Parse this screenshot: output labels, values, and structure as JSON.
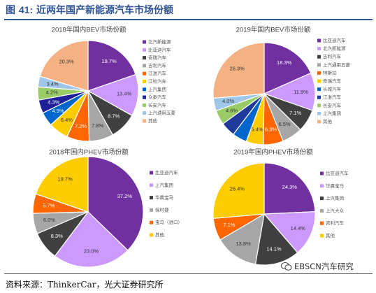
{
  "figure": {
    "title_prefix": "图",
    "title_number": "41:",
    "title_text": "近两年国产新能源汽车市场份额",
    "source": "资料来源：ThinkerCar，光大证券研究所",
    "watermark": "EBSCN汽车研究"
  },
  "colors": {
    "title_blue": "#2f5496"
  },
  "chart_data": [
    {
      "type": "pie",
      "title": "2018年国内BEV市场份额",
      "categories": [
        "北汽新能源",
        "比亚迪汽车",
        "奇瑞汽车",
        "吉利汽车",
        "江淮汽车",
        "江铃汽车",
        "上汽集团",
        "众泰汽车",
        "长安汽车",
        "上汽通用五菱",
        "其他"
      ],
      "values": [
        19.7,
        13.4,
        8.7,
        7.8,
        7.2,
        6.4,
        4.5,
        4.3,
        4.2,
        3.4,
        20.3
      ],
      "labels": [
        "19.7%",
        "13.4%",
        "8.7%",
        "7.8%",
        "7.2%",
        "6.4%",
        "4.5%",
        "4.3%",
        "4.2%",
        "3.4%",
        "20.3%"
      ],
      "colors": [
        "#7030a0",
        "#cc99ff",
        "#404040",
        "#a6a6a6",
        "#ff6600",
        "#ffcc00",
        "#0066cc",
        "#1f1f99",
        "#99cc66",
        "#9ec6e8",
        "#f4b183"
      ],
      "legend_position": "right"
    },
    {
      "type": "pie",
      "title": "2019年国内BEV市场份额",
      "categories": [
        "比亚迪汽车",
        "北汽新能源",
        "吉利汽车",
        "上汽通用五菱",
        "特斯拉",
        "奇瑞汽车",
        "长城汽车",
        "江淮汽车",
        "长安汽车",
        "上汽集团",
        "其他"
      ],
      "values": [
        18.3,
        11.9,
        7.1,
        6.5,
        6.3,
        5.4,
        4.6,
        4.6,
        4.6,
        4.0,
        26.3
      ],
      "labels": [
        "18.3%",
        "11.9%",
        "7.1%",
        "6.5%",
        "6.3%",
        "5.4%",
        "",
        "",
        "4.6%",
        "4.0%",
        "26.3%"
      ],
      "colors": [
        "#7030a0",
        "#cc99ff",
        "#404040",
        "#a6a6a6",
        "#ff6600",
        "#ffcc00",
        "#0066cc",
        "#1f3a99",
        "#99cc66",
        "#9ec6e8",
        "#f4b183"
      ],
      "legend_position": "right"
    },
    {
      "type": "pie",
      "title": "2018年国内PHEV市场份额",
      "categories": [
        "比亚迪汽车",
        "上汽集团",
        "华晨宝马",
        "保时捷",
        "宝马（进口）",
        "其他"
      ],
      "values": [
        37.2,
        23.0,
        8.3,
        6.0,
        5.7,
        19.7
      ],
      "labels": [
        "37.2%",
        "23.0%",
        "8.3%",
        "6.0%",
        "5.7%",
        "19.7%"
      ],
      "colors": [
        "#7030a0",
        "#cc99ff",
        "#404040",
        "#a6a6a6",
        "#ff6600",
        "#ffcc00"
      ],
      "legend_position": "right"
    },
    {
      "type": "pie",
      "title": "2019年国内PHEV市场份额",
      "categories": [
        "比亚迪汽车",
        "华晨宝马",
        "上汽集团",
        "上汽大众",
        "吉利汽车",
        "其他"
      ],
      "values": [
        24.3,
        14.4,
        14.1,
        13.8,
        7.1,
        26.4
      ],
      "labels": [
        "24.3%",
        "14.4%",
        "14.1%",
        "13.8%",
        "7.1%",
        "26.4%"
      ],
      "colors": [
        "#7030a0",
        "#cc99ff",
        "#404040",
        "#a6a6a6",
        "#ff6600",
        "#ffcc00"
      ],
      "legend_position": "right"
    }
  ]
}
